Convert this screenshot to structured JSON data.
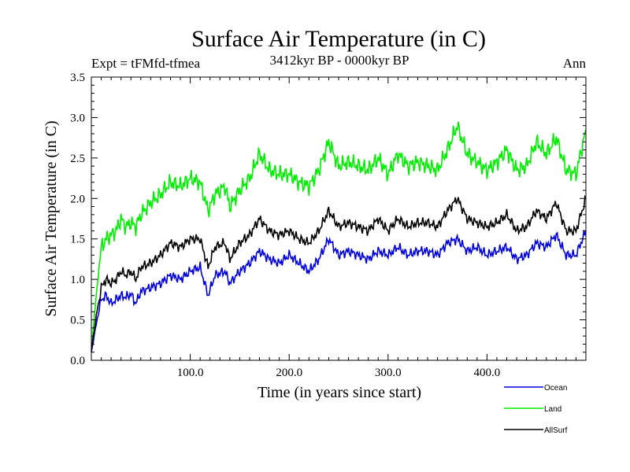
{
  "chart_data": {
    "type": "line",
    "title": "Surface Air Temperature (in C)",
    "subtitle": "3412kyr BP - 0000kyr BP",
    "experiment_label": "Expt = tFMfd-tfmea",
    "season_label": "Ann",
    "xlabel": "Time (in years since start)",
    "ylabel": "Surface Air Temperature (in C)",
    "xlim": [
      0,
      500
    ],
    "ylim": [
      0.0,
      3.5
    ],
    "xticks": [
      "100.0",
      "200.0",
      "300.0",
      "400.0"
    ],
    "xtick_values": [
      100,
      200,
      300,
      400
    ],
    "yticks": [
      "0.0",
      "0.5",
      "1.0",
      "1.5",
      "2.0",
      "2.5",
      "3.0",
      "3.5"
    ],
    "ytick_values": [
      0.0,
      0.5,
      1.0,
      1.5,
      2.0,
      2.5,
      3.0,
      3.5
    ],
    "legend_position": "bottom-right outside",
    "series": [
      {
        "name": "Ocean",
        "color": "#0000dd",
        "x": [
          0,
          5,
          10,
          15,
          20,
          25,
          30,
          35,
          40,
          45,
          50,
          60,
          70,
          80,
          90,
          100,
          110,
          118,
          125,
          135,
          140,
          150,
          160,
          170,
          180,
          190,
          200,
          210,
          220,
          230,
          240,
          250,
          260,
          270,
          280,
          290,
          300,
          310,
          320,
          330,
          340,
          350,
          360,
          370,
          380,
          390,
          400,
          410,
          420,
          430,
          440,
          450,
          460,
          470,
          480,
          490,
          500
        ],
        "values": [
          0.1,
          0.45,
          0.75,
          0.8,
          0.7,
          0.75,
          0.8,
          0.78,
          0.82,
          0.7,
          0.85,
          0.9,
          0.95,
          1.05,
          1.0,
          1.1,
          1.15,
          0.8,
          1.05,
          1.1,
          0.95,
          1.1,
          1.2,
          1.35,
          1.25,
          1.2,
          1.3,
          1.2,
          1.1,
          1.25,
          1.5,
          1.3,
          1.35,
          1.3,
          1.25,
          1.35,
          1.3,
          1.4,
          1.3,
          1.35,
          1.35,
          1.3,
          1.45,
          1.5,
          1.35,
          1.4,
          1.3,
          1.35,
          1.4,
          1.25,
          1.3,
          1.45,
          1.4,
          1.55,
          1.3,
          1.3,
          1.6
        ]
      },
      {
        "name": "Land",
        "color": "#00ee00",
        "x": [
          0,
          5,
          10,
          15,
          20,
          25,
          30,
          35,
          40,
          45,
          50,
          60,
          70,
          80,
          90,
          100,
          110,
          118,
          125,
          135,
          140,
          150,
          160,
          170,
          180,
          190,
          200,
          210,
          220,
          230,
          240,
          250,
          260,
          270,
          280,
          290,
          300,
          310,
          320,
          330,
          340,
          350,
          360,
          370,
          380,
          390,
          400,
          410,
          420,
          430,
          440,
          450,
          460,
          470,
          480,
          490,
          500
        ],
        "values": [
          0.15,
          0.8,
          1.4,
          1.5,
          1.55,
          1.6,
          1.75,
          1.65,
          1.7,
          1.65,
          1.8,
          1.95,
          2.05,
          2.2,
          2.15,
          2.25,
          2.2,
          1.85,
          2.05,
          2.15,
          1.9,
          2.1,
          2.25,
          2.55,
          2.35,
          2.3,
          2.3,
          2.2,
          2.15,
          2.35,
          2.7,
          2.4,
          2.45,
          2.4,
          2.35,
          2.5,
          2.3,
          2.55,
          2.4,
          2.45,
          2.4,
          2.35,
          2.6,
          2.9,
          2.55,
          2.45,
          2.35,
          2.45,
          2.6,
          2.35,
          2.4,
          2.7,
          2.55,
          2.75,
          2.35,
          2.3,
          2.85
        ]
      },
      {
        "name": "AllSurf",
        "color": "#000000",
        "x": [
          0,
          5,
          10,
          15,
          20,
          25,
          30,
          35,
          40,
          45,
          50,
          60,
          70,
          80,
          90,
          100,
          110,
          118,
          125,
          135,
          140,
          150,
          160,
          170,
          180,
          190,
          200,
          210,
          220,
          230,
          240,
          250,
          260,
          270,
          280,
          290,
          300,
          310,
          320,
          330,
          340,
          350,
          360,
          370,
          380,
          390,
          400,
          410,
          420,
          430,
          440,
          450,
          460,
          470,
          480,
          490,
          500
        ],
        "values": [
          0.12,
          0.55,
          0.9,
          1.0,
          0.95,
          1.0,
          1.1,
          1.05,
          1.1,
          1.0,
          1.15,
          1.2,
          1.3,
          1.45,
          1.4,
          1.5,
          1.5,
          1.15,
          1.4,
          1.45,
          1.25,
          1.45,
          1.55,
          1.75,
          1.6,
          1.55,
          1.6,
          1.5,
          1.45,
          1.6,
          1.85,
          1.65,
          1.7,
          1.65,
          1.6,
          1.75,
          1.6,
          1.75,
          1.65,
          1.7,
          1.7,
          1.65,
          1.85,
          2.0,
          1.75,
          1.7,
          1.65,
          1.7,
          1.8,
          1.6,
          1.65,
          1.85,
          1.75,
          1.95,
          1.6,
          1.6,
          2.0
        ]
      }
    ]
  }
}
